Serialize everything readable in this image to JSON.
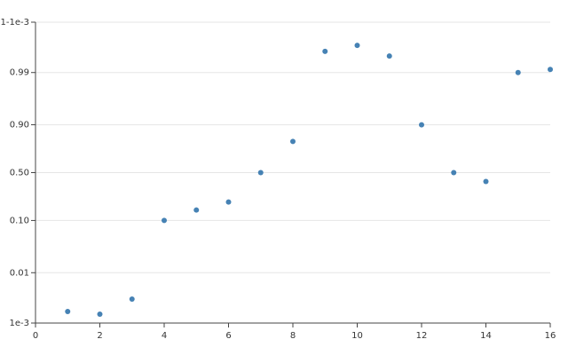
{
  "chart_data": {
    "type": "scatter",
    "yscale": "logit",
    "grid": true,
    "color": "#4682b4",
    "x": [
      1,
      2,
      3,
      4,
      5,
      6,
      7,
      8,
      9,
      10,
      11,
      12,
      13,
      14,
      15,
      16
    ],
    "values": [
      0.0017,
      0.0015,
      0.003,
      0.1,
      0.152,
      0.206,
      0.5,
      0.807,
      0.9962,
      0.9971,
      0.9953,
      0.9,
      0.5,
      0.4,
      0.99,
      0.9913
    ],
    "xlim": [
      0,
      16
    ],
    "xticks": [
      0,
      2,
      4,
      6,
      8,
      10,
      12,
      14,
      16
    ],
    "ylim": [
      0.001,
      0.999
    ],
    "yticks": [
      {
        "value": 0.001,
        "label": "1e-3"
      },
      0.01,
      {
        "value": 0.1,
        "label": "0.10"
      },
      {
        "value": 0.5,
        "label": "0.50"
      },
      {
        "value": 0.9,
        "label": "0.90"
      },
      0.99,
      {
        "value": 0.999,
        "label": "1-1e-3"
      }
    ]
  }
}
